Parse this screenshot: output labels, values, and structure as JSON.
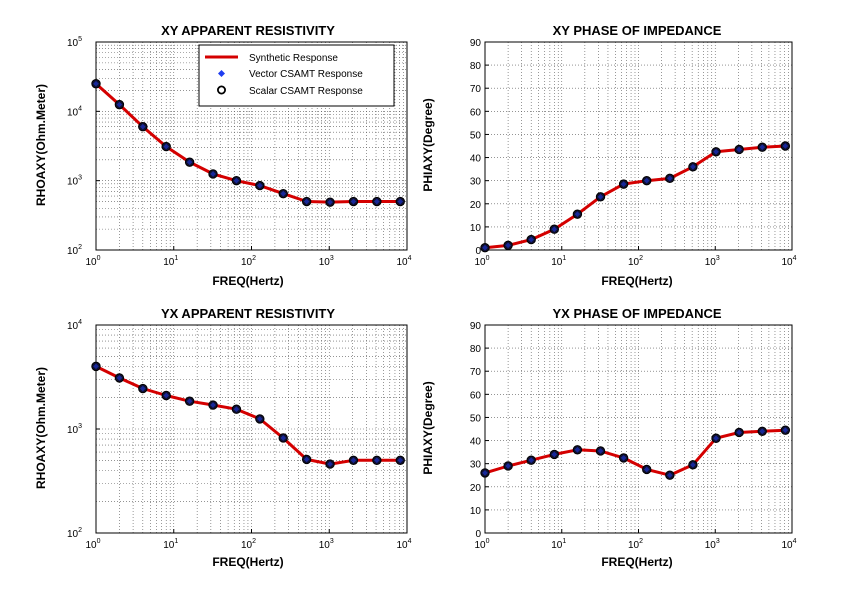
{
  "chart_data": [
    {
      "type": "line",
      "title": "XY APPARENT RESISTIVITY",
      "xlabel": "FREQ(Hertz)",
      "ylabel": "RHOAXY(Ohm.Meter)",
      "xscale": "log",
      "yscale": "log",
      "xlim": [
        1,
        10000
      ],
      "ylim": [
        100,
        100000
      ],
      "xticks": [
        "10^0",
        "10^1",
        "10^2",
        "10^3",
        "10^4"
      ],
      "yticks": [
        "10^2",
        "10^3",
        "10^4",
        "10^5"
      ],
      "grid": true,
      "legend": {
        "placement": "top-right",
        "entries": [
          "Synthetic Response",
          "Vector CSAMT Response",
          "Scalar CSAMT Response"
        ]
      },
      "x": [
        1,
        2,
        4,
        8,
        16,
        32,
        64,
        128,
        256,
        512,
        1024,
        2048,
        4096,
        8192
      ],
      "series": [
        {
          "name": "Synthetic Response",
          "values": [
            25000,
            12500,
            6000,
            3100,
            1850,
            1250,
            1000,
            850,
            650,
            500,
            490,
            500,
            500,
            500
          ]
        },
        {
          "name": "Vector CSAMT Response",
          "values": [
            25000,
            12500,
            6000,
            3100,
            1850,
            1250,
            1000,
            850,
            650,
            500,
            490,
            500,
            500,
            500
          ]
        },
        {
          "name": "Scalar CSAMT Response",
          "values": [
            25000,
            12500,
            6000,
            3100,
            1850,
            1250,
            1000,
            850,
            650,
            500,
            490,
            500,
            500,
            500
          ]
        }
      ]
    },
    {
      "type": "line",
      "title": "XY PHASE OF IMPEDANCE",
      "xlabel": "FREQ(Hertz)",
      "ylabel": "PHIAXY(Degree)",
      "xscale": "log",
      "yscale": "linear",
      "xlim": [
        1,
        10000
      ],
      "ylim": [
        0,
        90
      ],
      "xticks": [
        "10^0",
        "10^1",
        "10^2",
        "10^3",
        "10^4"
      ],
      "yticks": [
        "0",
        "10",
        "20",
        "30",
        "40",
        "50",
        "60",
        "70",
        "80",
        "90"
      ],
      "grid": true,
      "x": [
        1,
        2,
        4,
        8,
        16,
        32,
        64,
        128,
        256,
        512,
        1024,
        2048,
        4096,
        8192
      ],
      "series": [
        {
          "name": "Synthetic Response",
          "values": [
            1,
            2,
            4.5,
            9,
            15.5,
            23,
            28.5,
            30,
            31,
            36,
            42.5,
            43.5,
            44.5,
            45
          ]
        },
        {
          "name": "Vector CSAMT Response",
          "values": [
            1,
            2,
            4.5,
            9,
            15.5,
            23,
            28.5,
            30,
            31,
            36,
            42.5,
            43.5,
            44.5,
            45
          ]
        },
        {
          "name": "Scalar CSAMT Response",
          "values": [
            1,
            2,
            4.5,
            9,
            15.5,
            23,
            28.5,
            30,
            31,
            36,
            42.5,
            43.5,
            44.5,
            45
          ]
        }
      ]
    },
    {
      "type": "line",
      "title": "YX APPARENT RESISTIVITY",
      "xlabel": "FREQ(Hertz)",
      "ylabel": "RHOAXY(Ohm.Meter)",
      "xscale": "log",
      "yscale": "log",
      "xlim": [
        1,
        10000
      ],
      "ylim": [
        100,
        10000
      ],
      "xticks": [
        "10^0",
        "10^1",
        "10^2",
        "10^3",
        "10^4"
      ],
      "yticks": [
        "10^2",
        "10^3",
        "10^4"
      ],
      "grid": true,
      "x": [
        1,
        2,
        4,
        8,
        16,
        32,
        64,
        128,
        256,
        512,
        1024,
        2048,
        4096,
        8192
      ],
      "series": [
        {
          "name": "Synthetic Response",
          "values": [
            4000,
            3100,
            2450,
            2100,
            1850,
            1700,
            1550,
            1250,
            820,
            510,
            460,
            500,
            500,
            500
          ]
        },
        {
          "name": "Vector CSAMT Response",
          "values": [
            4000,
            3100,
            2450,
            2100,
            1850,
            1700,
            1550,
            1250,
            820,
            510,
            460,
            500,
            500,
            500
          ]
        },
        {
          "name": "Scalar CSAMT Response",
          "values": [
            4000,
            3100,
            2450,
            2100,
            1850,
            1700,
            1550,
            1250,
            820,
            510,
            460,
            500,
            500,
            500
          ]
        }
      ]
    },
    {
      "type": "line",
      "title": "YX PHASE OF IMPEDANCE",
      "xlabel": "FREQ(Hertz)",
      "ylabel": "PHIAXY(Degree)",
      "xscale": "log",
      "yscale": "linear",
      "xlim": [
        1,
        10000
      ],
      "ylim": [
        0,
        90
      ],
      "xticks": [
        "10^0",
        "10^1",
        "10^2",
        "10^3",
        "10^4"
      ],
      "yticks": [
        "0",
        "10",
        "20",
        "30",
        "40",
        "50",
        "60",
        "70",
        "80",
        "90"
      ],
      "grid": true,
      "x": [
        1,
        2,
        4,
        8,
        16,
        32,
        64,
        128,
        256,
        512,
        1024,
        2048,
        4096,
        8192
      ],
      "series": [
        {
          "name": "Synthetic Response",
          "values": [
            26,
            29,
            31.5,
            34,
            36,
            35.5,
            32.5,
            27.5,
            25,
            29.5,
            41,
            43.5,
            44,
            44.5
          ]
        },
        {
          "name": "Vector CSAMT Response",
          "values": [
            26,
            29,
            31.5,
            34,
            36,
            35.5,
            32.5,
            27.5,
            25,
            29.5,
            41,
            43.5,
            44,
            44.5
          ]
        },
        {
          "name": "Scalar CSAMT Response",
          "values": [
            26,
            29,
            31.5,
            34,
            36,
            35.5,
            32.5,
            27.5,
            25,
            29.5,
            41,
            43.5,
            44,
            44.5
          ]
        }
      ]
    }
  ],
  "colors": {
    "synthetic_line": "#d40000",
    "vector_marker": "#1f3df0",
    "scalar_marker": "#101030",
    "grid": "#555555"
  }
}
